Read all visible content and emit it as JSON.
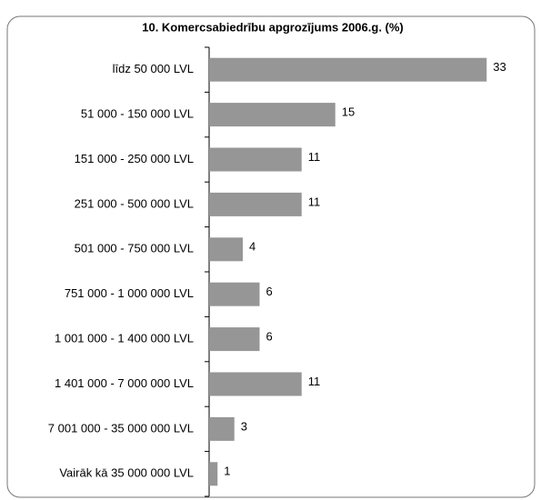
{
  "chart_data": {
    "type": "bar",
    "orientation": "horizontal",
    "title": "10. Komercsabiedrību apgrozījums 2006.g. (%)",
    "categories": [
      "līdz 50 000 LVL",
      "51 000 - 150 000 LVL",
      "151 000 - 250 000 LVL",
      "251 000 - 500 000 LVL",
      "501 000 - 750 000 LVL",
      "751 000 - 1 000 000 LVL",
      "1 001 000 - 1 400 000 LVL",
      "1 401 000 - 7 000 000 LVL",
      "7 001 000 - 35 000 000 LVL",
      "Vairāk kā 35 000 000 LVL"
    ],
    "values": [
      33,
      15,
      11,
      11,
      4,
      6,
      6,
      11,
      3,
      1
    ],
    "color": "#969696"
  }
}
